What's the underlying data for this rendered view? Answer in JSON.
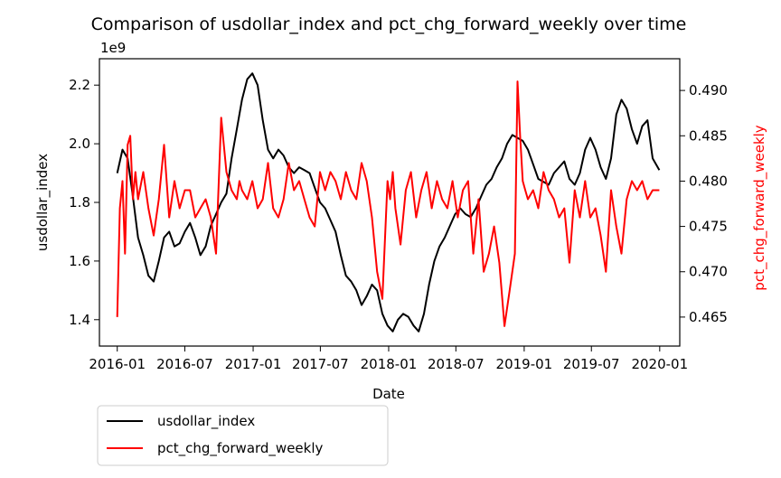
{
  "chart_data": {
    "type": "line",
    "title": "Comparison of usdollar_index and pct_chg_forward_weekly over time",
    "xlabel": "Date",
    "ylabel_left": "usdollar_index",
    "ylabel_right": "pct_chg_forward_weekly",
    "left_offset_label": "1e9",
    "x_ticks": [
      "2016-01",
      "2016-07",
      "2017-01",
      "2017-07",
      "2018-01",
      "2018-07",
      "2019-01",
      "2019-07",
      "2020-01"
    ],
    "y_left_ticks": [
      "1.4",
      "1.6",
      "1.8",
      "2.0",
      "2.2"
    ],
    "y_right_ticks": [
      "0.465",
      "0.470",
      "0.475",
      "0.480",
      "0.485",
      "0.490"
    ],
    "x_range": [
      "2015-11-14",
      "2020-02-24"
    ],
    "y_left_range": [
      1.31,
      2.29
    ],
    "y_right_range": [
      0.4618,
      0.4935
    ],
    "legend_location": "below-left",
    "colors": {
      "usdollar_index": "#000000",
      "pct_chg_forward_weekly": "#ff0000"
    },
    "series": [
      {
        "name": "usdollar_index",
        "axis": "left",
        "x": [
          "2016-01-01",
          "2016-01-15",
          "2016-01-29",
          "2016-02-12",
          "2016-02-26",
          "2016-03-11",
          "2016-03-25",
          "2016-04-08",
          "2016-04-22",
          "2016-05-06",
          "2016-05-20",
          "2016-06-03",
          "2016-06-17",
          "2016-07-01",
          "2016-07-15",
          "2016-07-29",
          "2016-08-12",
          "2016-08-26",
          "2016-09-09",
          "2016-09-23",
          "2016-10-07",
          "2016-10-21",
          "2016-11-04",
          "2016-11-18",
          "2016-12-02",
          "2016-12-16",
          "2016-12-30",
          "2017-01-13",
          "2017-01-27",
          "2017-02-10",
          "2017-02-24",
          "2017-03-10",
          "2017-03-24",
          "2017-04-07",
          "2017-04-21",
          "2017-05-05",
          "2017-05-19",
          "2017-06-02",
          "2017-06-16",
          "2017-06-30",
          "2017-07-14",
          "2017-07-28",
          "2017-08-11",
          "2017-08-25",
          "2017-09-08",
          "2017-09-22",
          "2017-10-06",
          "2017-10-20",
          "2017-11-03",
          "2017-11-17",
          "2017-12-01",
          "2017-12-15",
          "2017-12-29",
          "2018-01-12",
          "2018-01-26",
          "2018-02-09",
          "2018-02-23",
          "2018-03-09",
          "2018-03-23",
          "2018-04-06",
          "2018-04-20",
          "2018-05-04",
          "2018-05-18",
          "2018-06-01",
          "2018-06-15",
          "2018-06-29",
          "2018-07-13",
          "2018-07-27",
          "2018-08-10",
          "2018-08-24",
          "2018-09-07",
          "2018-09-21",
          "2018-10-05",
          "2018-10-19",
          "2018-11-02",
          "2018-11-16",
          "2018-11-30",
          "2018-12-14",
          "2018-12-28",
          "2019-01-11",
          "2019-01-25",
          "2019-02-08",
          "2019-02-22",
          "2019-03-08",
          "2019-03-22",
          "2019-04-05",
          "2019-04-19",
          "2019-05-03",
          "2019-05-17",
          "2019-05-31",
          "2019-06-14",
          "2019-06-28",
          "2019-07-12",
          "2019-07-26",
          "2019-08-09",
          "2019-08-23",
          "2019-09-06",
          "2019-09-20",
          "2019-10-04",
          "2019-10-18",
          "2019-11-01",
          "2019-11-15",
          "2019-11-29",
          "2019-12-13",
          "2019-12-31"
        ],
        "values": [
          1.9,
          1.98,
          1.95,
          1.82,
          1.68,
          1.62,
          1.55,
          1.53,
          1.6,
          1.68,
          1.7,
          1.65,
          1.66,
          1.7,
          1.73,
          1.68,
          1.62,
          1.65,
          1.72,
          1.76,
          1.8,
          1.83,
          1.95,
          2.05,
          2.15,
          2.22,
          2.24,
          2.2,
          2.08,
          1.98,
          1.95,
          1.98,
          1.96,
          1.92,
          1.9,
          1.92,
          1.91,
          1.9,
          1.85,
          1.8,
          1.78,
          1.74,
          1.7,
          1.62,
          1.55,
          1.53,
          1.5,
          1.45,
          1.48,
          1.52,
          1.5,
          1.42,
          1.38,
          1.36,
          1.4,
          1.42,
          1.41,
          1.38,
          1.36,
          1.42,
          1.52,
          1.6,
          1.65,
          1.68,
          1.72,
          1.76,
          1.78,
          1.76,
          1.75,
          1.78,
          1.82,
          1.86,
          1.88,
          1.92,
          1.95,
          2.0,
          2.03,
          2.02,
          2.01,
          1.98,
          1.93,
          1.88,
          1.87,
          1.86,
          1.9,
          1.92,
          1.94,
          1.88,
          1.86,
          1.9,
          1.98,
          2.02,
          1.98,
          1.92,
          1.88,
          1.95,
          2.1,
          2.15,
          2.12,
          2.05,
          2.0,
          2.06,
          2.08,
          1.95,
          1.91
        ]
      },
      {
        "name": "pct_chg_forward_weekly",
        "axis": "right",
        "x": [
          "2016-01-01",
          "2016-01-08",
          "2016-01-15",
          "2016-01-22",
          "2016-01-29",
          "2016-02-05",
          "2016-02-12",
          "2016-02-19",
          "2016-02-26",
          "2016-03-11",
          "2016-03-25",
          "2016-04-08",
          "2016-04-22",
          "2016-05-06",
          "2016-05-20",
          "2016-06-03",
          "2016-06-17",
          "2016-07-01",
          "2016-07-15",
          "2016-07-29",
          "2016-08-12",
          "2016-08-26",
          "2016-09-09",
          "2016-09-23",
          "2016-10-07",
          "2016-10-21",
          "2016-11-04",
          "2016-11-18",
          "2016-11-25",
          "2016-12-02",
          "2016-12-16",
          "2016-12-30",
          "2017-01-13",
          "2017-01-27",
          "2017-02-10",
          "2017-02-24",
          "2017-03-10",
          "2017-03-24",
          "2017-04-07",
          "2017-04-21",
          "2017-05-05",
          "2017-05-19",
          "2017-06-02",
          "2017-06-16",
          "2017-06-30",
          "2017-07-14",
          "2017-07-28",
          "2017-08-11",
          "2017-08-25",
          "2017-09-08",
          "2017-09-22",
          "2017-10-06",
          "2017-10-20",
          "2017-11-03",
          "2017-11-17",
          "2017-12-01",
          "2017-12-15",
          "2017-12-29",
          "2018-01-05",
          "2018-01-12",
          "2018-01-19",
          "2018-02-02",
          "2018-02-16",
          "2018-03-02",
          "2018-03-16",
          "2018-03-30",
          "2018-04-13",
          "2018-04-27",
          "2018-05-11",
          "2018-05-25",
          "2018-06-08",
          "2018-06-22",
          "2018-07-06",
          "2018-07-20",
          "2018-08-03",
          "2018-08-17",
          "2018-08-31",
          "2018-09-14",
          "2018-09-28",
          "2018-10-12",
          "2018-10-26",
          "2018-11-09",
          "2018-11-23",
          "2018-12-07",
          "2018-12-14",
          "2018-12-21",
          "2018-12-28",
          "2019-01-04",
          "2019-01-11",
          "2019-01-25",
          "2019-02-08",
          "2019-02-22",
          "2019-03-08",
          "2019-03-22",
          "2019-04-05",
          "2019-04-19",
          "2019-05-03",
          "2019-05-17",
          "2019-05-31",
          "2019-06-14",
          "2019-06-28",
          "2019-07-12",
          "2019-07-26",
          "2019-08-09",
          "2019-08-23",
          "2019-09-06",
          "2019-09-20",
          "2019-10-04",
          "2019-10-18",
          "2019-11-01",
          "2019-11-15",
          "2019-11-29",
          "2019-12-13",
          "2019-12-31"
        ],
        "values": [
          0.465,
          0.477,
          0.48,
          0.472,
          0.484,
          0.485,
          0.478,
          0.481,
          0.478,
          0.481,
          0.477,
          0.474,
          0.478,
          0.484,
          0.476,
          0.48,
          0.477,
          0.479,
          0.479,
          0.476,
          0.477,
          0.478,
          0.476,
          0.472,
          0.487,
          0.481,
          0.479,
          0.478,
          0.48,
          0.479,
          0.478,
          0.48,
          0.477,
          0.478,
          0.482,
          0.477,
          0.476,
          0.478,
          0.482,
          0.479,
          0.48,
          0.478,
          0.476,
          0.475,
          0.481,
          0.479,
          0.481,
          0.48,
          0.478,
          0.481,
          0.479,
          0.478,
          0.482,
          0.48,
          0.476,
          0.47,
          0.467,
          0.48,
          0.478,
          0.481,
          0.477,
          0.473,
          0.479,
          0.481,
          0.476,
          0.479,
          0.481,
          0.477,
          0.48,
          0.478,
          0.477,
          0.48,
          0.476,
          0.479,
          0.48,
          0.472,
          0.478,
          0.47,
          0.472,
          0.475,
          0.471,
          0.464,
          0.468,
          0.472,
          0.491,
          0.485,
          0.48,
          0.479,
          0.478,
          0.479,
          0.477,
          0.481,
          0.479,
          0.478,
          0.476,
          0.477,
          0.471,
          0.479,
          0.476,
          0.48,
          0.476,
          0.477,
          0.474,
          0.47,
          0.479,
          0.475,
          0.472,
          0.478,
          0.48,
          0.479,
          0.48,
          0.478,
          0.479,
          0.479
        ]
      }
    ]
  }
}
